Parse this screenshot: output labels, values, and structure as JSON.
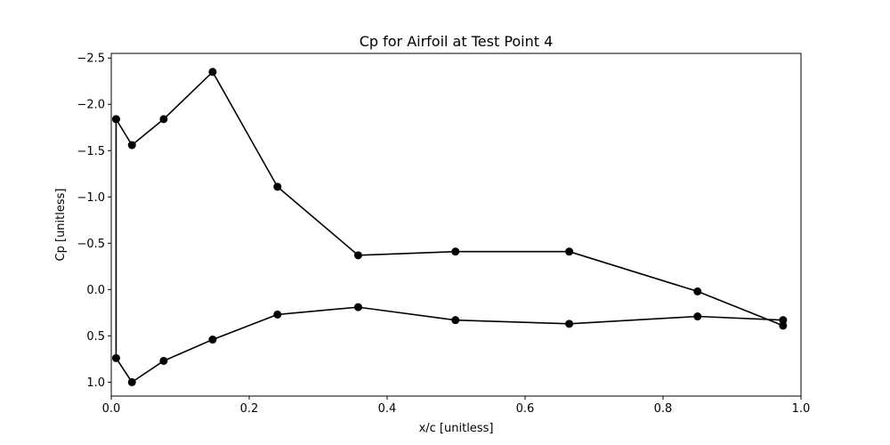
{
  "chart_data": {
    "type": "line",
    "title": "Cp for Airfoil at Test Point 4",
    "xlabel": "x/c [unitless]",
    "ylabel": "Cp [unitless]",
    "xlim": [
      0.0,
      1.0
    ],
    "ylim": [
      1.15,
      -2.55
    ],
    "y_inverted": true,
    "grid": false,
    "legend": "none",
    "line_color": "#000000",
    "marker": "circle",
    "x_ticks": [
      {
        "value": 0.0,
        "label": "0.0"
      },
      {
        "value": 0.2,
        "label": "0.2"
      },
      {
        "value": 0.4,
        "label": "0.4"
      },
      {
        "value": 0.6,
        "label": "0.6"
      },
      {
        "value": 0.8,
        "label": "0.8"
      },
      {
        "value": 1.0,
        "label": "1.0"
      }
    ],
    "y_ticks": [
      {
        "value": -2.5,
        "label": "−2.5"
      },
      {
        "value": -2.0,
        "label": "−2.0"
      },
      {
        "value": -1.5,
        "label": "−1.5"
      },
      {
        "value": -1.0,
        "label": "−1.0"
      },
      {
        "value": -0.5,
        "label": "−0.5"
      },
      {
        "value": 0.0,
        "label": "0.0"
      },
      {
        "value": 0.5,
        "label": "0.5"
      },
      {
        "value": 1.0,
        "label": "1.0"
      }
    ],
    "series": [
      {
        "x": [
          0.007,
          0.03,
          0.076,
          0.147,
          0.241,
          0.358,
          0.499,
          0.664,
          0.85,
          0.974,
          0.974,
          0.85,
          0.664,
          0.499,
          0.358,
          0.241,
          0.147,
          0.076,
          0.03,
          0.007,
          0.007
        ],
        "y": [
          -1.84,
          -1.56,
          -1.84,
          -2.35,
          -1.11,
          -0.37,
          -0.41,
          -0.41,
          0.02,
          0.39,
          0.33,
          0.29,
          0.37,
          0.33,
          0.19,
          0.27,
          0.54,
          0.77,
          1.0,
          0.74,
          -1.84
        ]
      }
    ]
  }
}
